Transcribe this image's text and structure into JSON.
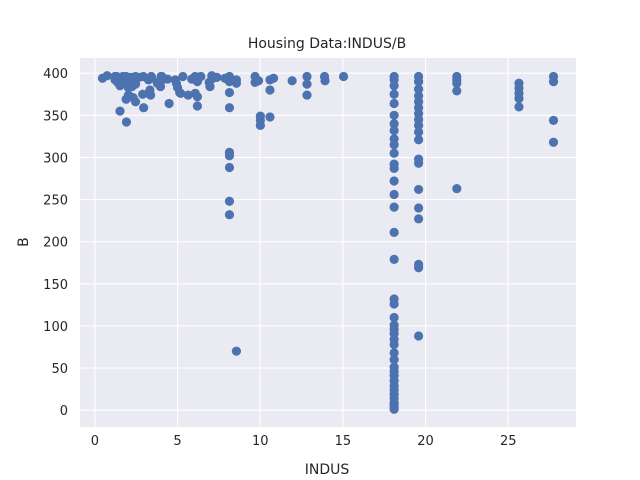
{
  "chart_data": {
    "type": "scatter",
    "title": "Housing Data:INDUS/B",
    "xlabel": "INDUS",
    "ylabel": "B",
    "xlim": [
      -0.9,
      29.1
    ],
    "ylim": [
      -20,
      418
    ],
    "xticks": [
      0,
      5,
      10,
      15,
      20,
      25
    ],
    "yticks": [
      0,
      50,
      100,
      150,
      200,
      250,
      300,
      350,
      400
    ],
    "grid": true,
    "colors": {
      "background": "#eaeaf2",
      "grid": "#ffffff",
      "point": "#4c72b0",
      "text": "#262626"
    },
    "series": [
      {
        "points": [
          [
            0.46,
            394
          ],
          [
            0.74,
            397
          ],
          [
            1.21,
            396
          ],
          [
            1.22,
            392
          ],
          [
            1.25,
            395
          ],
          [
            1.32,
            396
          ],
          [
            1.38,
            389
          ],
          [
            1.47,
            388
          ],
          [
            1.52,
            385
          ],
          [
            1.52,
            355
          ],
          [
            1.69,
            396
          ],
          [
            1.76,
            392
          ],
          [
            1.89,
            396
          ],
          [
            1.89,
            369
          ],
          [
            1.91,
            342
          ],
          [
            2.01,
            390
          ],
          [
            2.02,
            383
          ],
          [
            2.03,
            374
          ],
          [
            2.18,
            395
          ],
          [
            2.24,
            384
          ],
          [
            2.25,
            392
          ],
          [
            2.31,
            371
          ],
          [
            2.46,
            396
          ],
          [
            2.46,
            387
          ],
          [
            2.46,
            366
          ],
          [
            2.68,
            395
          ],
          [
            2.89,
            375
          ],
          [
            2.93,
            396
          ],
          [
            2.95,
            359
          ],
          [
            3.24,
            392
          ],
          [
            3.33,
            380
          ],
          [
            3.37,
            374
          ],
          [
            3.41,
            396
          ],
          [
            3.44,
            394
          ],
          [
            3.78,
            388
          ],
          [
            3.97,
            384
          ],
          [
            3.97,
            391
          ],
          [
            4.0,
            396
          ],
          [
            4.05,
            396
          ],
          [
            4.15,
            393
          ],
          [
            4.39,
            393
          ],
          [
            4.49,
            364
          ],
          [
            4.86,
            392
          ],
          [
            4.93,
            388
          ],
          [
            5.0,
            383
          ],
          [
            5.13,
            377
          ],
          [
            5.19,
            376
          ],
          [
            5.32,
            396
          ],
          [
            5.64,
            374
          ],
          [
            5.86,
            393
          ],
          [
            5.96,
            394
          ],
          [
            6.06,
            396
          ],
          [
            6.07,
            376
          ],
          [
            6.2,
            372
          ],
          [
            6.2,
            361
          ],
          [
            6.2,
            390
          ],
          [
            6.41,
            396
          ],
          [
            6.91,
            389
          ],
          [
            6.96,
            384
          ],
          [
            7.07,
            397
          ],
          [
            7.07,
            393
          ],
          [
            7.38,
            395
          ],
          [
            7.87,
            394
          ],
          [
            8.14,
            390
          ],
          [
            8.14,
            377
          ],
          [
            8.14,
            359
          ],
          [
            8.14,
            306
          ],
          [
            8.14,
            302
          ],
          [
            8.14,
            288
          ],
          [
            8.14,
            248
          ],
          [
            8.14,
            232
          ],
          [
            8.14,
            396
          ],
          [
            8.56,
            388
          ],
          [
            8.56,
            392
          ],
          [
            8.56,
            70
          ],
          [
            9.69,
            396
          ],
          [
            9.69,
            389
          ],
          [
            9.9,
            391
          ],
          [
            10.01,
            349
          ],
          [
            10.01,
            338
          ],
          [
            10.01,
            344
          ],
          [
            10.59,
            392
          ],
          [
            10.59,
            380
          ],
          [
            10.81,
            394
          ],
          [
            10.59,
            348
          ],
          [
            11.93,
            391
          ],
          [
            12.83,
            396
          ],
          [
            12.83,
            387
          ],
          [
            12.83,
            374
          ],
          [
            13.89,
            396
          ],
          [
            13.92,
            391
          ],
          [
            15.04,
            396
          ],
          [
            18.1,
            396
          ],
          [
            18.1,
            392
          ],
          [
            18.1,
            385
          ],
          [
            18.1,
            375
          ],
          [
            18.1,
            364
          ],
          [
            18.1,
            350
          ],
          [
            18.1,
            340
          ],
          [
            18.1,
            332
          ],
          [
            18.1,
            322
          ],
          [
            18.1,
            315
          ],
          [
            18.1,
            305
          ],
          [
            18.1,
            292
          ],
          [
            18.1,
            287
          ],
          [
            18.1,
            272
          ],
          [
            18.1,
            256
          ],
          [
            18.1,
            241
          ],
          [
            18.1,
            211
          ],
          [
            18.1,
            179
          ],
          [
            18.1,
            132
          ],
          [
            18.1,
            126
          ],
          [
            18.1,
            110
          ],
          [
            18.1,
            101
          ],
          [
            18.1,
            96
          ],
          [
            18.1,
            91
          ],
          [
            18.1,
            84
          ],
          [
            18.1,
            78
          ],
          [
            18.1,
            68
          ],
          [
            18.1,
            60
          ],
          [
            18.1,
            51
          ],
          [
            18.1,
            46
          ],
          [
            18.1,
            41
          ],
          [
            18.1,
            35
          ],
          [
            18.1,
            29
          ],
          [
            18.1,
            24
          ],
          [
            18.1,
            19
          ],
          [
            18.1,
            14
          ],
          [
            18.1,
            9
          ],
          [
            18.1,
            6
          ],
          [
            18.1,
            3
          ],
          [
            18.1,
            1
          ],
          [
            19.58,
            396
          ],
          [
            19.58,
            390
          ],
          [
            19.58,
            381
          ],
          [
            19.58,
            373
          ],
          [
            19.58,
            366
          ],
          [
            19.58,
            359
          ],
          [
            19.58,
            352
          ],
          [
            19.58,
            345
          ],
          [
            19.58,
            338
          ],
          [
            19.58,
            330
          ],
          [
            19.58,
            321
          ],
          [
            19.58,
            298
          ],
          [
            19.58,
            293
          ],
          [
            19.58,
            262
          ],
          [
            19.58,
            240
          ],
          [
            19.58,
            227
          ],
          [
            19.58,
            173
          ],
          [
            19.58,
            169
          ],
          [
            19.58,
            88
          ],
          [
            21.89,
            396
          ],
          [
            21.89,
            392
          ],
          [
            21.89,
            388
          ],
          [
            21.89,
            379
          ],
          [
            21.89,
            263
          ],
          [
            25.65,
            388
          ],
          [
            25.65,
            382
          ],
          [
            25.65,
            376
          ],
          [
            25.65,
            370
          ],
          [
            25.65,
            360
          ],
          [
            27.74,
            396
          ],
          [
            27.74,
            390
          ],
          [
            27.74,
            344
          ],
          [
            27.74,
            318
          ]
        ]
      }
    ]
  }
}
